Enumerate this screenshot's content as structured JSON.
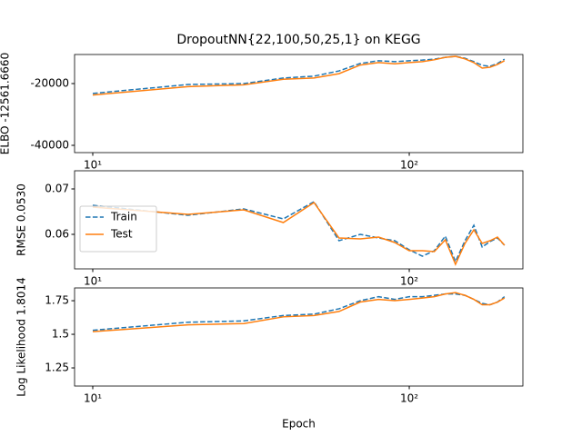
{
  "chart_data": [
    {
      "type": "line",
      "title": "DropoutNN{22,100,50,25,1} on KEGG",
      "ylabel": "ELBO -12561.6660",
      "log_x": true,
      "xlim": [
        8.76,
        228.6
      ],
      "xticks": [
        {
          "value": 10,
          "label": "10¹"
        },
        {
          "value": 100,
          "label": "10²"
        }
      ],
      "ylim": [
        -42350,
        -10590
      ],
      "yticks": [
        -40000,
        -20000
      ],
      "x": [
        10,
        20,
        30,
        40,
        50,
        60,
        70,
        80,
        90,
        100,
        110,
        120,
        130,
        140,
        150,
        160,
        170,
        180,
        190,
        200
      ],
      "series": [
        {
          "name": "Train",
          "color": "#1f77b4",
          "dashed": true,
          "values": [
            -23200,
            -20300,
            -20000,
            -18200,
            -17600,
            -15900,
            -13500,
            -12600,
            -12900,
            -12600,
            -12400,
            -12100,
            -11500,
            -11200,
            -11800,
            -12900,
            -14100,
            -14400,
            -13500,
            -12100
          ]
        },
        {
          "name": "Test",
          "color": "#ff7f0e",
          "dashed": false,
          "values": [
            -23700,
            -21000,
            -20400,
            -18600,
            -18200,
            -16800,
            -14000,
            -13200,
            -13600,
            -13200,
            -12900,
            -12300,
            -11500,
            -11200,
            -12000,
            -13200,
            -15000,
            -14700,
            -13800,
            -12600
          ]
        }
      ]
    },
    {
      "type": "line",
      "ylabel": "RMSE 0.0530",
      "log_x": true,
      "xlim": [
        8.76,
        228.6
      ],
      "xticks": [
        {
          "value": 10,
          "label": "10¹"
        },
        {
          "value": 100,
          "label": "10²"
        }
      ],
      "ylim": [
        0.0524,
        0.074
      ],
      "yticks": [
        0.06,
        0.07
      ],
      "legend": "center left",
      "x": [
        10,
        20,
        30,
        40,
        50,
        60,
        70,
        80,
        90,
        100,
        110,
        120,
        130,
        140,
        150,
        160,
        170,
        180,
        190,
        200
      ],
      "series": [
        {
          "name": "Train",
          "color": "#1f77b4",
          "dashed": true,
          "values": [
            0.0664,
            0.0642,
            0.0656,
            0.0634,
            0.0672,
            0.0586,
            0.06,
            0.0592,
            0.0586,
            0.0566,
            0.0552,
            0.0564,
            0.0596,
            0.054,
            0.0586,
            0.062,
            0.0572,
            0.0584,
            0.0592,
            0.0576
          ]
        },
        {
          "name": "Test",
          "color": "#ff7f0e",
          "dashed": false,
          "values": [
            0.066,
            0.0644,
            0.0654,
            0.0626,
            0.067,
            0.0592,
            0.059,
            0.0594,
            0.0582,
            0.0564,
            0.0564,
            0.0562,
            0.0588,
            0.0534,
            0.058,
            0.061,
            0.058,
            0.0586,
            0.0594,
            0.0576
          ]
        }
      ]
    },
    {
      "type": "line",
      "ylabel": "Log Likelihood 1.8014",
      "xlabel": "Epoch",
      "log_x": true,
      "xlim": [
        8.76,
        228.6
      ],
      "xticks": [
        {
          "value": 10,
          "label": "10¹"
        },
        {
          "value": 100,
          "label": "10²"
        }
      ],
      "ylim": [
        1.115,
        1.845
      ],
      "yticks": [
        1.25,
        1.5,
        1.75
      ],
      "x": [
        10,
        20,
        30,
        40,
        50,
        60,
        70,
        80,
        90,
        100,
        110,
        120,
        130,
        140,
        150,
        160,
        170,
        180,
        190,
        200
      ],
      "series": [
        {
          "name": "Train",
          "color": "#1f77b4",
          "dashed": true,
          "values": [
            1.53,
            1.59,
            1.6,
            1.64,
            1.65,
            1.69,
            1.75,
            1.78,
            1.76,
            1.78,
            1.78,
            1.79,
            1.8,
            1.8,
            1.79,
            1.76,
            1.73,
            1.72,
            1.74,
            1.78
          ]
        },
        {
          "name": "Test",
          "color": "#ff7f0e",
          "dashed": false,
          "values": [
            1.52,
            1.57,
            1.58,
            1.63,
            1.64,
            1.67,
            1.74,
            1.76,
            1.75,
            1.76,
            1.77,
            1.78,
            1.8,
            1.81,
            1.79,
            1.76,
            1.72,
            1.72,
            1.74,
            1.77
          ]
        }
      ]
    }
  ]
}
